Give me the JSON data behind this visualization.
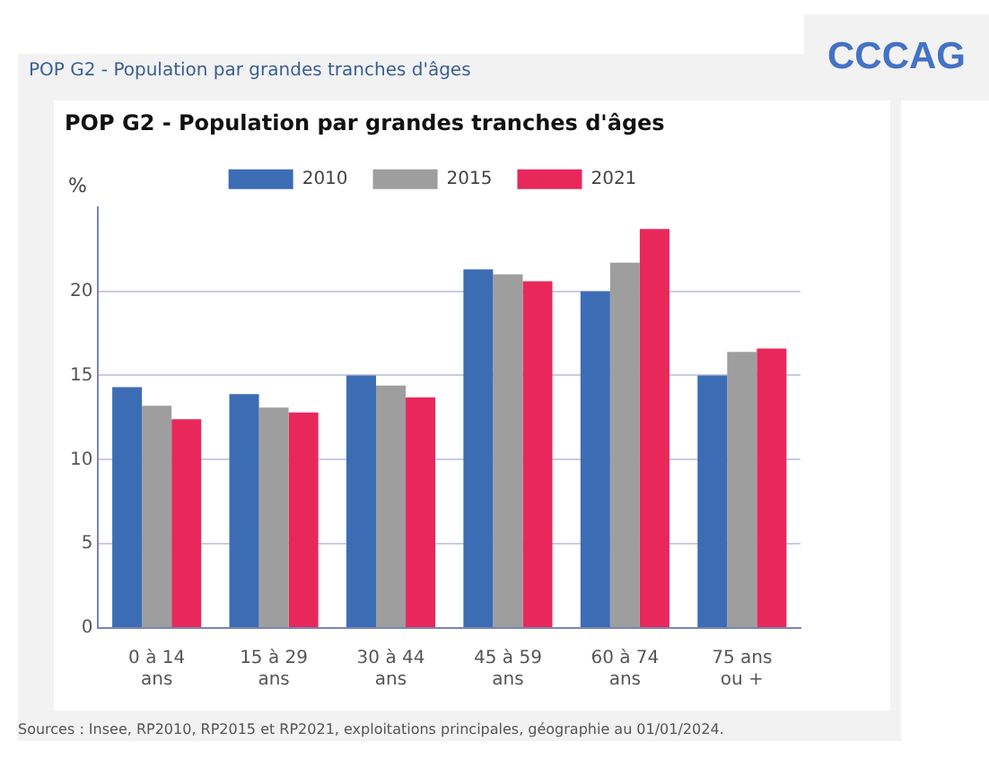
{
  "chart_data": {
    "type": "bar",
    "title": "POP G2 - Population par grandes tranches d'âges",
    "ylabel": "%",
    "annotations": [
      "POP G2 - Population par grandes tranches d'âges",
      "CCCAG",
      "Sources : Insee, RP2010, RP2015 et RP2021, exploitations principales, géographie au 01/01/2024."
    ],
    "categories": [
      "0 à 14 ans",
      "15 à 29 ans",
      "30 à 44 ans",
      "45 à 59 ans",
      "60 à 74 ans",
      "75 ans ou +"
    ],
    "series": [
      {
        "name": "2010",
        "color": "#3c6db4",
        "values": [
          14.3,
          13.9,
          15.0,
          21.3,
          20.0,
          15.0
        ]
      },
      {
        "name": "2015",
        "color": "#9e9e9e",
        "values": [
          13.2,
          13.1,
          14.4,
          21.0,
          21.7,
          16.4
        ]
      },
      {
        "name": "2021",
        "color": "#e8285a",
        "values": [
          12.4,
          12.8,
          13.7,
          20.6,
          23.7,
          16.6
        ]
      }
    ],
    "ylim": [
      0,
      25
    ],
    "yticks": [
      0,
      5,
      10,
      15,
      20
    ],
    "grid": "y",
    "legend": "top"
  }
}
